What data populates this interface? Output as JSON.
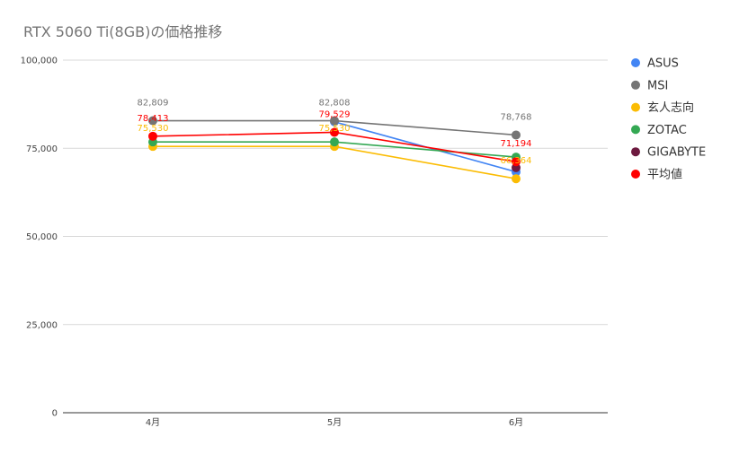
{
  "chart_data": {
    "type": "line",
    "title": "RTX 5060 Ti(8GB)の価格推移",
    "xlabel": "",
    "ylabel": "",
    "categories": [
      "4月",
      "5月",
      "6月"
    ],
    "ylim": [
      0,
      100000
    ],
    "yticks": [
      0,
      25000,
      50000,
      75000,
      100000
    ],
    "ytick_labels": [
      "0",
      "25,000",
      "50,000",
      "75,000",
      "100,000"
    ],
    "grid": true,
    "legend_position": "right",
    "series": [
      {
        "name": "ASUS",
        "color": "#4285f4",
        "values": [
          null,
          82500,
          68300
        ],
        "labels": [
          "",
          "",
          ""
        ]
      },
      {
        "name": "MSI",
        "color": "#757575",
        "values": [
          82809,
          82808,
          78768
        ],
        "labels": [
          "82,809",
          "82,808",
          "78,768"
        ]
      },
      {
        "name": "玄人志向",
        "color": "#fbbc04",
        "values": [
          75530,
          75530,
          66364
        ],
        "labels": [
          "75,530",
          "75,530",
          "66,364"
        ]
      },
      {
        "name": "ZOTAC",
        "color": "#34a853",
        "values": [
          76800,
          76800,
          72500
        ],
        "labels": [
          "",
          "",
          ""
        ]
      },
      {
        "name": "GIGABYTE",
        "color": "#6d1a3f",
        "values": [
          null,
          null,
          69500
        ],
        "labels": [
          "",
          "",
          ""
        ]
      },
      {
        "name": "平均値",
        "color": "#ff0000",
        "values": [
          78413,
          79529,
          71194
        ],
        "labels": [
          "78,413",
          "79,529",
          "71,194"
        ]
      }
    ]
  }
}
